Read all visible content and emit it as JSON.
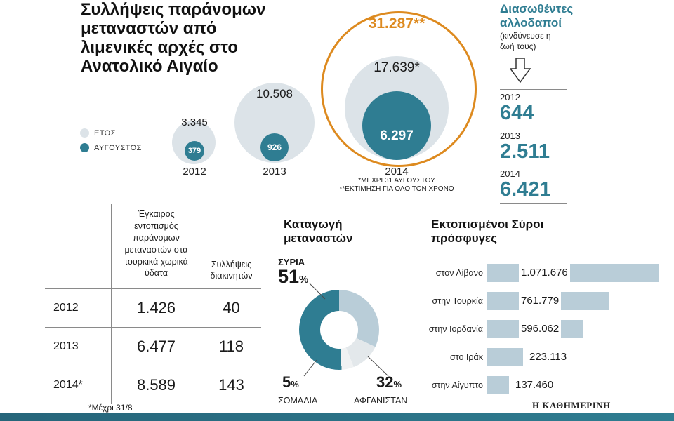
{
  "meta": {
    "branding": "Η ΚΑΘΗΜΕΡΙΝΗ"
  },
  "colors": {
    "teal": "#2f7d92",
    "light_circle": "#dce3e8",
    "orange": "#dd8a1f",
    "bar": "#b9cdd8"
  },
  "chart_data": [
    {
      "id": "arrests_bubble",
      "type": "scatter",
      "title": "Συλλήψεις παράνομων μεταναστών από λιμενικές αρχές στο Ανατολικό Αιγαίο",
      "legend": [
        "ΕΤΟΣ",
        "ΑΥΓΟΥΣΤΟΣ"
      ],
      "categories": [
        "2012",
        "2013",
        "2014"
      ],
      "series": [
        {
          "name": "ΕΤΟΣ",
          "values": [
            3345,
            10508,
            17639
          ],
          "labels": [
            "3.345",
            "10.508",
            "17.639*"
          ]
        },
        {
          "name": "ΑΥΓΟΥΣΤΟΣ",
          "values": [
            379,
            926,
            6297
          ],
          "labels": [
            "379",
            "926",
            "6.297"
          ]
        },
        {
          "name": "ΕΚΤΙΜΗΣΗ ΓΙΑ ΟΛΟ ΤΟΝ ΧΡΟΝΟ",
          "values": [
            null,
            null,
            31287
          ],
          "labels": [
            null,
            null,
            "31.287**"
          ]
        }
      ],
      "annotations": [
        "*ΜΕΧΡΙ 31 ΑΥΓΟΥΣΤΟΥ",
        "**ΕΚΤΙΜΗΣΗ ΓΙΑ ΟΛΟ ΤΟΝ ΧΡΟΝΟ"
      ]
    },
    {
      "id": "rescued",
      "type": "table",
      "title": "Διασωθέντες αλλοδαποί",
      "subtitle": "(κινδύνευσε η ζωή τους)",
      "categories": [
        "2012",
        "2013",
        "2014"
      ],
      "values": [
        644,
        2511,
        6421
      ],
      "labels": [
        "644",
        "2.511",
        "6.421"
      ]
    },
    {
      "id": "detection_table",
      "type": "table",
      "columns": [
        "",
        "Έγκαιρος εντοπισμός παράνομων μεταναστών στα τουρκικά χωρικά ύδατα",
        "Συλλήψεις διακινητών"
      ],
      "rows": [
        [
          "2012",
          "1.426",
          "40"
        ],
        [
          "2013",
          "6.477",
          "118"
        ],
        [
          "2014*",
          "8.589",
          "143"
        ]
      ],
      "footnote": "*Μέχρι 31/8"
    },
    {
      "id": "origin_pie",
      "type": "pie",
      "title": "Καταγωγή μεταναστών",
      "categories": [
        "ΣΥΡΙΑ",
        "ΑΦΓΑΝΙΣΤΑΝ",
        "ΣΟΜΑΛΙΑ"
      ],
      "values": [
        51,
        32,
        5
      ],
      "unlabeled_remainder_pct": 12,
      "percent_symbol": "%",
      "colors": {
        "ΣΥΡΙΑ": "#2f7d92",
        "ΑΦΓΑΝΙΣΤΑΝ": "#b9cdd8",
        "ΣΟΜΑΛΙΑ": "#f0f2f3",
        "remainder": "#e3e8eb"
      }
    },
    {
      "id": "syrian_refugees",
      "type": "bar",
      "title": "Εκτοπισμένοι Σύροι πρόσφυγες",
      "categories": [
        "στον Λίβανο",
        "στην Τουρκία",
        "στην Ιορδανία",
        "στο Ιράκ",
        "στην Αίγυπτο"
      ],
      "values": [
        1071676,
        761779,
        596062,
        223113,
        137460
      ],
      "labels": [
        "1.071.676",
        "761.779",
        "596.062",
        "223.113",
        "137.460"
      ]
    }
  ]
}
